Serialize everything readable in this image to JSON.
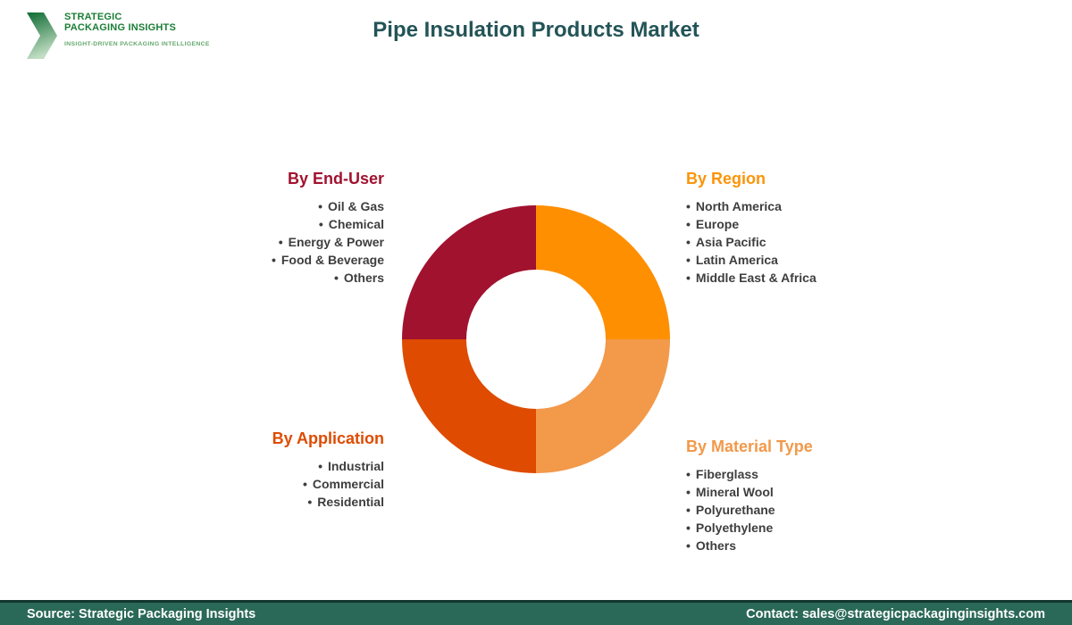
{
  "header": {
    "logo": {
      "name_line1": "STRATEGIC",
      "name_line2": "PACKAGING INSIGHTS",
      "tagline": "INSIGHT-DRIVEN PACKAGING INTELLIGENCE"
    },
    "title": "Pipe Insulation Products Market"
  },
  "chart_data": {
    "type": "pie",
    "donut": true,
    "title": "Pipe Insulation Products Market",
    "legend_position": "around",
    "slices": [
      {
        "label": "By Region",
        "value": 25,
        "color": "#FE8F01",
        "quadrant": "top-right"
      },
      {
        "label": "By Material Type",
        "value": 25,
        "color": "#F2994A",
        "quadrant": "bottom-right"
      },
      {
        "label": "By Application",
        "value": 25,
        "color": "#DE4B01",
        "quadrant": "bottom-left"
      },
      {
        "label": "By End-User",
        "value": 25,
        "color": "#A1122F",
        "quadrant": "top-left"
      }
    ]
  },
  "segments": {
    "end_user": {
      "heading": "By End-User",
      "heading_color": "#A1122F",
      "items": [
        "Oil & Gas",
        "Chemical",
        "Energy & Power",
        "Food & Beverage",
        "Others"
      ]
    },
    "region": {
      "heading": "By Region",
      "heading_color": "#FB9408",
      "items": [
        "North America",
        "Europe",
        "Asia Pacific",
        "Latin America",
        "Middle East & Africa"
      ]
    },
    "application": {
      "heading": "By Application",
      "heading_color": "#DE4B01",
      "items": [
        "Industrial",
        "Commercial",
        "Residential"
      ]
    },
    "material_type": {
      "heading": "By Material Type",
      "heading_color": "#F2994A",
      "items": [
        "Fiberglass",
        "Mineral Wool",
        "Polyurethane",
        "Polyethylene",
        "Others"
      ]
    }
  },
  "footer": {
    "source": "Source: Strategic Packaging Insights",
    "contact": "Contact: sales@strategicpackaginginsights.com"
  }
}
